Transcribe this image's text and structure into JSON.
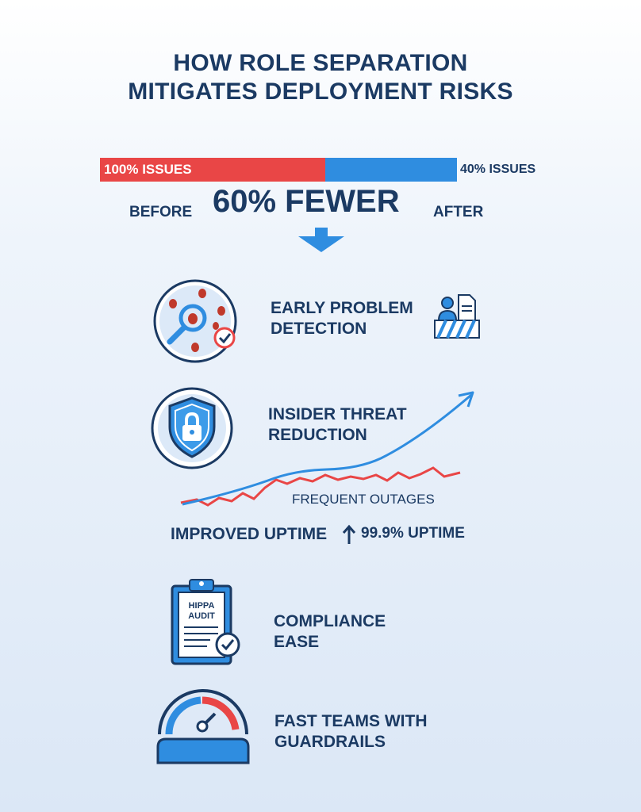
{
  "title": {
    "line1": "HOW ROLE SEPARATION",
    "line2": "MITIGATES DEPLOYMENT RISKS"
  },
  "comparison": {
    "before_bar_label": "100% ISSUES",
    "after_bar_label": "40% ISSUES",
    "before_label": "BEFORE",
    "after_label": "AFTER",
    "headline": "60% FEWER",
    "before_value_percent": 100,
    "after_value_percent": 40,
    "colors": {
      "before": "#e94646",
      "after": "#2f8de0",
      "text": "#1b3a63"
    }
  },
  "features": [
    {
      "line1": "EARLY PROBLEM",
      "line2": "DETECTION",
      "icon": "bug-magnifier-icon"
    },
    {
      "line1": "INSIDER THREAT",
      "line2": "REDUCTION",
      "icon": "shield-lock-icon"
    },
    {
      "line1": "COMPLIANCE",
      "line2": "EASE",
      "icon": "clipboard-audit-icon"
    },
    {
      "line1": "FAST TEAMS WITH",
      "line2": "GUARDRAILS",
      "icon": "speedometer-icon"
    }
  ],
  "trend": {
    "outages_label": "FREQUENT OUTAGES",
    "improved_label": "IMPROVED UPTIME",
    "uptime_label": "99.9% UPTIME"
  },
  "audit_icon": {
    "line1": "HIPPA",
    "line2": "AUDIT"
  }
}
